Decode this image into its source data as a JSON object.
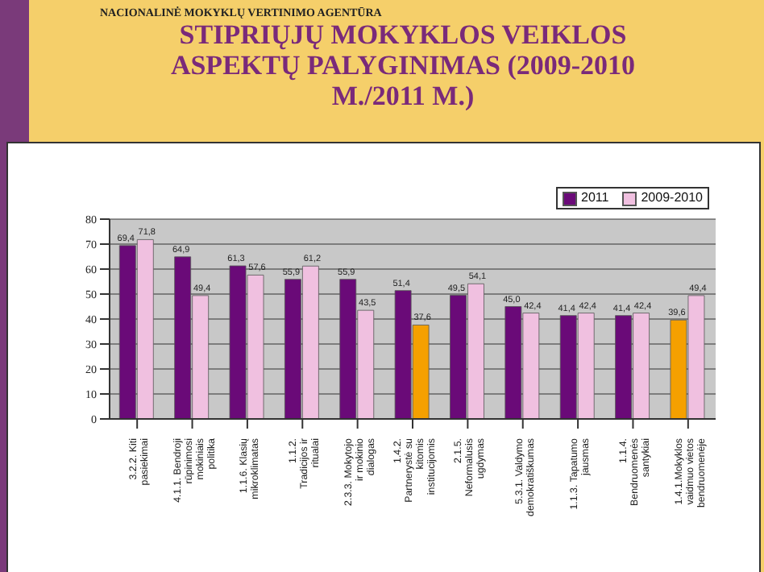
{
  "chart_data": {
    "type": "bar",
    "title": "STIPRIŲJŲ MOKYKLOS VEIKLOS ASPEKTŲ PALYGINIMAS (2009-2010 M./2011 M.)",
    "annotations": [
      "NACIONALINĖ MOKYKLŲ VERTINIMO AGENTŪRA"
    ],
    "categories": [
      "3.2.2. Kiti pasiekimai",
      "4.1.1. Bendroji rūpinimosi mokiniais politika",
      "1.1.6. Klasių mikroklimatas",
      "1.1.2. Tradicijos ir ritualai",
      "2.3.3. Mokytojo ir mokinio dialogas",
      "1.4.2. Partnerystė su kitomis institucijomis",
      "2.1.5. Neformalusis ugdymas",
      "5.3.1. Valdymo demokratiškumas",
      "1.1.3. Tapatumo jausmas",
      "1.1.4. Bendruomenės santykiai",
      "1.4.1.Mokyklos vaidmuo vietos bendruomenėje"
    ],
    "series": [
      {
        "name": "2011",
        "color": "#6a0a78",
        "colors": [
          "#6a0a78",
          "#6a0a78",
          "#6a0a78",
          "#6a0a78",
          "#6a0a78",
          "#6a0a78",
          "#6a0a78",
          "#6a0a78",
          "#6a0a78",
          "#6a0a78",
          "#f5a000"
        ],
        "values": [
          69.4,
          64.9,
          61.3,
          55.9,
          55.9,
          51.4,
          49.5,
          45.0,
          41.4,
          41.4,
          39.6
        ],
        "value_labels": [
          "69,4",
          "64,9",
          "61,3",
          "55,9",
          "55,9",
          "51,4",
          "49,5",
          "45,0",
          "41,4",
          "41,4",
          "39,6"
        ]
      },
      {
        "name": "2009-2010",
        "color": "#f0c0e0",
        "colors": [
          "#f0c0e0",
          "#f0c0e0",
          "#f0c0e0",
          "#f0c0e0",
          "#f0c0e0",
          "#f5a000",
          "#f0c0e0",
          "#f0c0e0",
          "#f0c0e0",
          "#f0c0e0",
          "#f0c0e0"
        ],
        "values": [
          71.8,
          49.4,
          57.6,
          61.2,
          43.5,
          37.6,
          54.1,
          42.4,
          42.4,
          42.4,
          49.4
        ],
        "value_labels": [
          "71,8",
          "49,4",
          "57,6",
          "61,2",
          "43,5",
          "37,6",
          "54,1",
          "42,4",
          "42,4",
          "42,4",
          "49,4"
        ]
      }
    ],
    "ylim": [
      0,
      80
    ],
    "yticks": [
      0,
      10,
      20,
      30,
      40,
      50,
      60,
      70,
      80
    ],
    "grid": "y",
    "legend": "top right"
  }
}
